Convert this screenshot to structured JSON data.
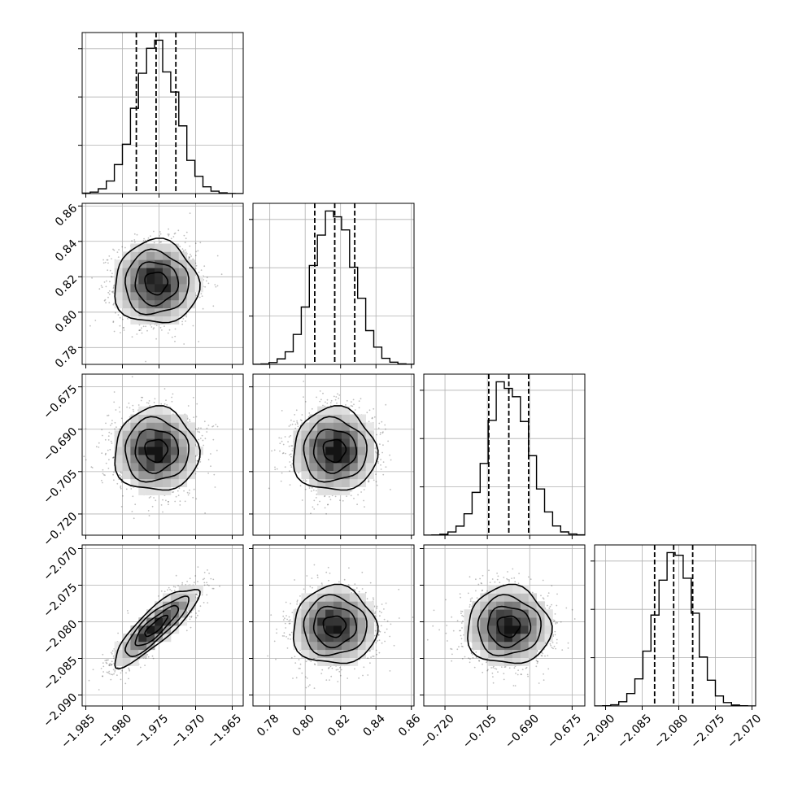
{
  "chart_data": {
    "type": "corner",
    "grid": true,
    "parameters": [
      {
        "range": [
          -1.9855,
          -1.9635
        ],
        "ticks": [
          -1.985,
          -1.98,
          -1.975,
          -1.97,
          -1.965
        ],
        "tick_labels": [
          "−1.985",
          "−1.980",
          "−1.975",
          "−1.970",
          "−1.965"
        ],
        "mean": -1.9754,
        "sd": 0.0028,
        "quantiles": [
          -1.9781,
          -1.9754,
          -1.9727
        ]
      },
      {
        "range": [
          0.7705,
          0.8615
        ],
        "ticks": [
          0.78,
          0.8,
          0.82,
          0.84,
          0.86
        ],
        "tick_labels": [
          "0.78",
          "0.80",
          "0.82",
          "0.84",
          "0.86"
        ],
        "mean": 0.8165,
        "sd": 0.0115,
        "quantiles": [
          0.8054,
          0.8167,
          0.828
        ]
      },
      {
        "range": [
          -0.7275,
          -0.6705
        ],
        "ticks": [
          -0.72,
          -0.705,
          -0.69,
          -0.675
        ],
        "tick_labels": [
          "−0.720",
          "−0.705",
          "−0.690",
          "−0.675"
        ],
        "mean": -0.6975,
        "sd": 0.0072,
        "quantiles": [
          -0.7045,
          -0.6974,
          -0.6904
        ]
      },
      {
        "range": [
          -2.0915,
          -2.0695
        ],
        "ticks": [
          -2.09,
          -2.085,
          -2.08,
          -2.075,
          -2.07
        ],
        "tick_labels": [
          "−2.090",
          "−2.085",
          "−2.080",
          "−2.075",
          "−2.070"
        ],
        "mean": -2.0806,
        "sd": 0.0026,
        "quantiles": [
          -2.0833,
          -2.0807,
          -2.0781
        ]
      }
    ],
    "correlations": {
      "1-0": 0.0,
      "2-0": 0.0,
      "2-1": 0.0,
      "3-0": 0.85,
      "3-1": 0.0,
      "3-2": 0.0
    },
    "histogram_bins": 20,
    "contour_levels_sigma": [
      0.5,
      1.0,
      1.5,
      2.0
    ]
  },
  "colors": {
    "line": "#000000",
    "grid": "#b0b0b0",
    "scatter": "#000000"
  }
}
